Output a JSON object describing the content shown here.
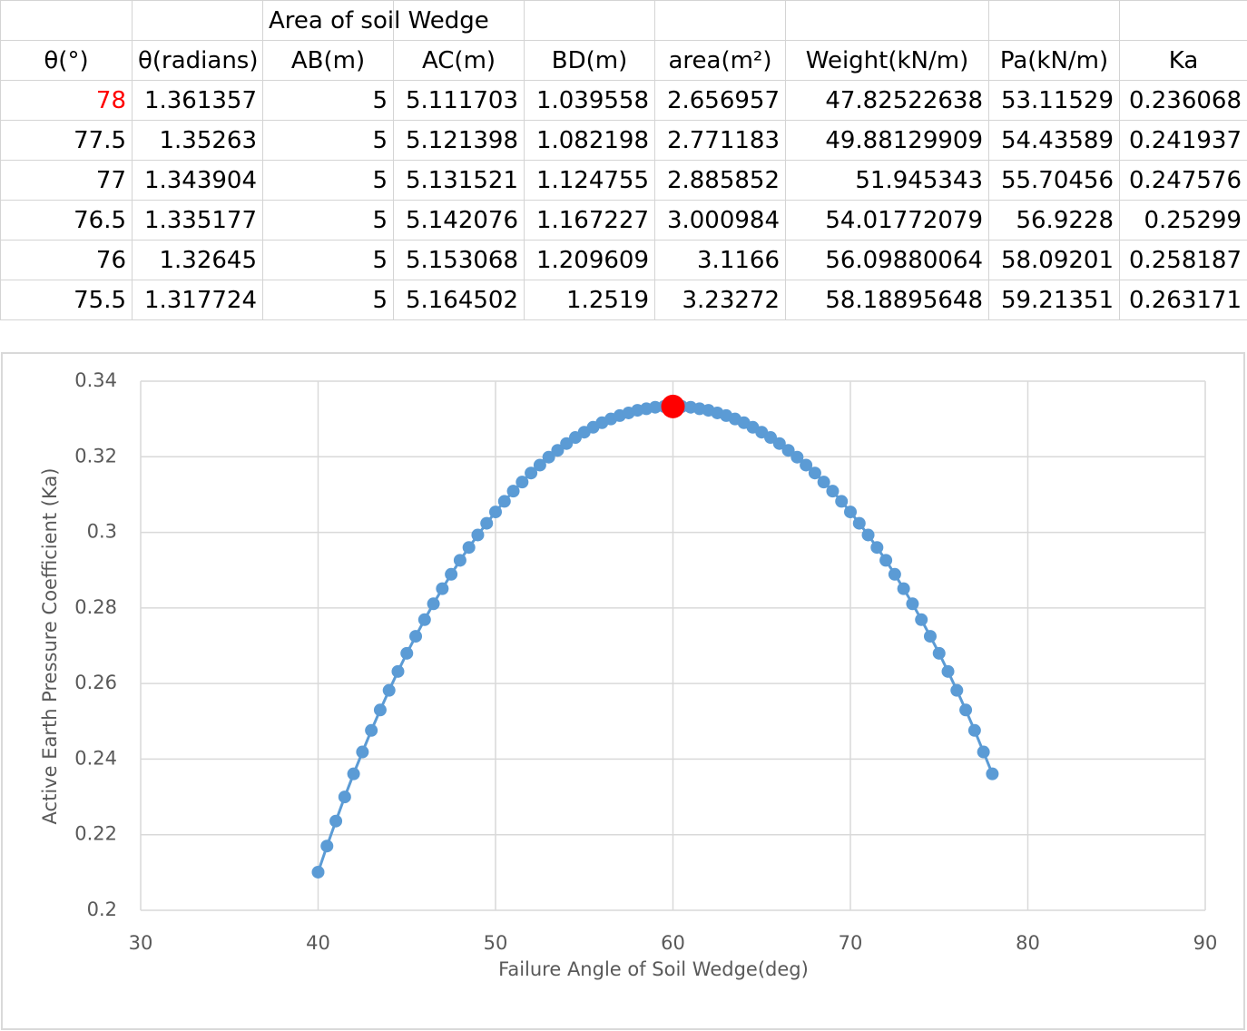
{
  "table": {
    "group_header": "Area of soil Wedge",
    "columns": [
      "θ(°)",
      "θ(radians)",
      "AB(m)",
      "AC(m)",
      "BD(m)",
      "area(m²)",
      "Weight(kN/m)",
      "Pa(kN/m)",
      "Ka"
    ],
    "rows": [
      [
        78,
        1.361357,
        5,
        5.111703,
        1.039558,
        2.656957,
        47.82522638,
        53.11529,
        0.236068
      ],
      [
        77.5,
        1.35263,
        5,
        5.121398,
        1.082198,
        2.771183,
        49.88129909,
        54.43589,
        0.241937
      ],
      [
        77,
        1.343904,
        5,
        5.131521,
        1.124755,
        2.885852,
        51.945343,
        55.70456,
        0.247576
      ],
      [
        76.5,
        1.335177,
        5,
        5.142076,
        1.167227,
        3.000984,
        54.01772079,
        56.9228,
        0.25299
      ],
      [
        76,
        1.32645,
        5,
        5.153068,
        1.209609,
        3.1166,
        56.09880064,
        58.09201,
        0.258187
      ],
      [
        75.5,
        1.317724,
        5,
        5.164502,
        1.2519,
        3.23272,
        58.18895648,
        59.21351,
        0.263171
      ]
    ]
  },
  "chart_data": {
    "type": "line",
    "x_label": "Failure Angle of Soil Wedge(deg)",
    "y_label": "Active Earth Pressure Coefficient (Ka)",
    "xlim": [
      30,
      90
    ],
    "xticks": [
      30,
      40,
      50,
      60,
      70,
      80,
      90
    ],
    "ylim": [
      0.2,
      0.34
    ],
    "yticks": [
      0.2,
      0.22,
      0.24,
      0.26,
      0.28,
      0.3,
      0.32,
      0.34
    ],
    "grid": true,
    "series": [
      {
        "color": "#5b9bd5",
        "x": [
          40,
          40.5,
          41,
          41.5,
          42,
          42.5,
          43,
          43.5,
          44,
          44.5,
          45,
          45.5,
          46,
          46.5,
          47,
          47.5,
          48,
          48.5,
          49,
          49.5,
          50,
          50.5,
          51,
          51.5,
          52,
          52.5,
          53,
          53.5,
          54,
          54.5,
          55,
          55.5,
          56,
          56.5,
          57,
          57.5,
          58,
          58.5,
          59,
          59.5,
          60,
          60.5,
          61,
          61.5,
          62,
          62.5,
          63,
          63.5,
          64,
          64.5,
          65,
          65.5,
          66,
          66.5,
          67,
          67.5,
          68,
          68.5,
          69,
          69.5,
          70,
          70.5,
          71,
          71.5,
          72,
          72.5,
          73,
          73.5,
          74,
          74.5,
          75,
          75.5,
          76,
          76.5,
          77,
          77.5,
          78
        ],
        "values": [
          0.2101,
          0.217,
          0.2236,
          0.23,
          0.2361,
          0.2419,
          0.2476,
          0.253,
          0.2582,
          0.2632,
          0.268,
          0.2725,
          0.2769,
          0.2811,
          0.2851,
          0.2889,
          0.2926,
          0.296,
          0.2993,
          0.3024,
          0.3054,
          0.3082,
          0.3109,
          0.3133,
          0.3157,
          0.3178,
          0.3199,
          0.3217,
          0.3235,
          0.3251,
          0.3265,
          0.3278,
          0.329,
          0.33,
          0.3309,
          0.3316,
          0.3323,
          0.3327,
          0.3331,
          0.3333,
          0.3333,
          0.3333,
          0.3331,
          0.3327,
          0.3323,
          0.3316,
          0.3309,
          0.33,
          0.329,
          0.3278,
          0.3265,
          0.3251,
          0.3235,
          0.3217,
          0.3199,
          0.3178,
          0.3157,
          0.3133,
          0.3109,
          0.3082,
          0.3054,
          0.3024,
          0.2993,
          0.296,
          0.2926,
          0.2889,
          0.2851,
          0.2811,
          0.2769,
          0.2725,
          0.268,
          0.2632,
          0.2582,
          0.253,
          0.2476,
          0.2419,
          0.2361
        ]
      },
      {
        "color": "#ff0000",
        "x": [
          60
        ],
        "values": [
          0.3333
        ]
      }
    ]
  }
}
